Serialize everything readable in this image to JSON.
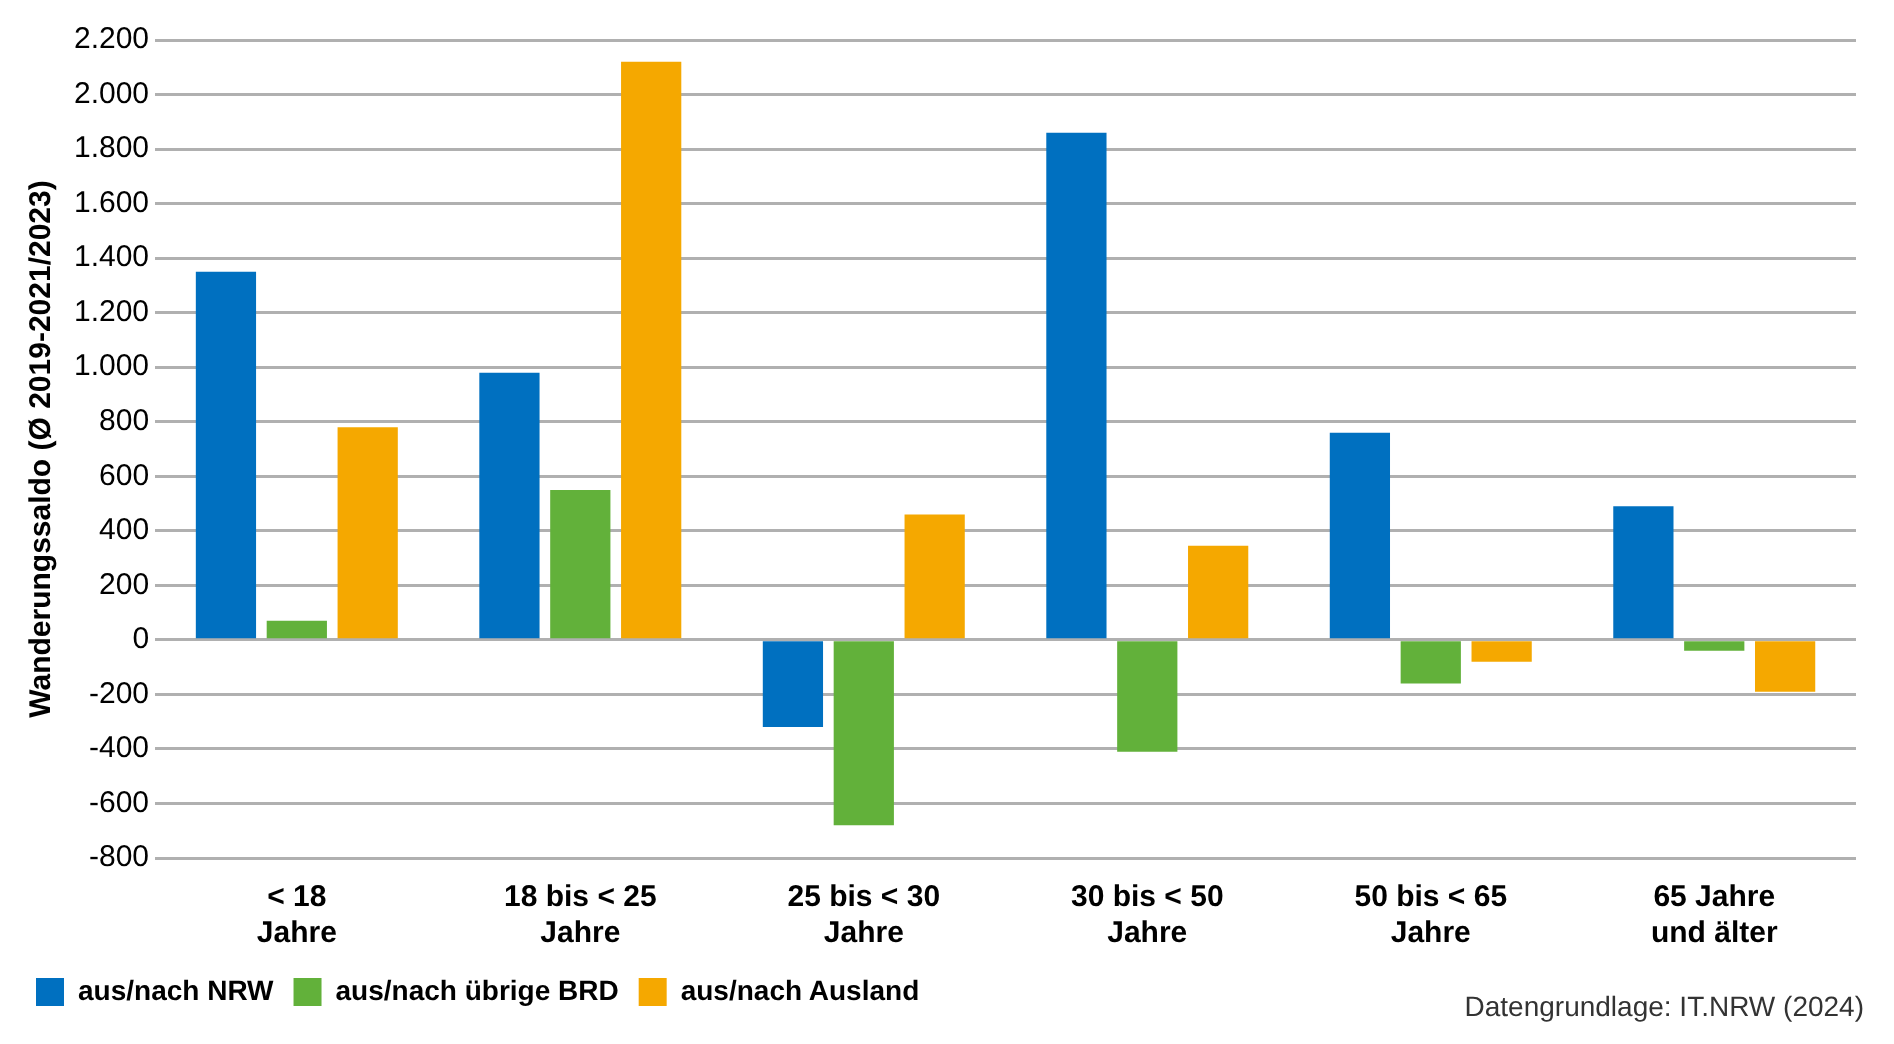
{
  "chart_data": {
    "type": "bar",
    "ylabel": "Wanderungssaldo (Ø 2019-2021/2023)",
    "categories": [
      "< 18\nJahre",
      "18 bis < 25\nJahre",
      "25 bis < 30\nJahre",
      "30 bis < 50\nJahre",
      "50 bis < 65\nJahre",
      "65 Jahre\nund älter"
    ],
    "series": [
      {
        "name": "aus/nach NRW",
        "color": "#0070c0",
        "values": [
          1350,
          980,
          -320,
          1860,
          760,
          490
        ]
      },
      {
        "name": "aus/nach übrige BRD",
        "color": "#62b13a",
        "values": [
          70,
          550,
          -680,
          -410,
          -160,
          -40
        ]
      },
      {
        "name": "aus/nach Ausland",
        "color": "#f5a800",
        "values": [
          780,
          2120,
          460,
          345,
          -80,
          -190
        ]
      }
    ],
    "ylim": [
      -800,
      2200
    ],
    "yticks": [
      {
        "value": -800,
        "label": "-800"
      },
      {
        "value": -600,
        "label": "-600"
      },
      {
        "value": -400,
        "label": "-400"
      },
      {
        "value": -200,
        "label": "-200"
      },
      0,
      200,
      400,
      600,
      800,
      {
        "value": 1000,
        "label": "1.000"
      },
      {
        "value": 1200,
        "label": "1.200"
      },
      {
        "value": 1400,
        "label": "1.400"
      },
      {
        "value": 1600,
        "label": "1.600"
      },
      {
        "value": 1800,
        "label": "1.800"
      },
      {
        "value": 2000,
        "label": "2.000"
      },
      {
        "value": 2200,
        "label": "2.200"
      }
    ],
    "grid": "y",
    "legend": "bottom left",
    "annotations": [
      "Datengrundlage: IT.NRW (2024)"
    ]
  }
}
